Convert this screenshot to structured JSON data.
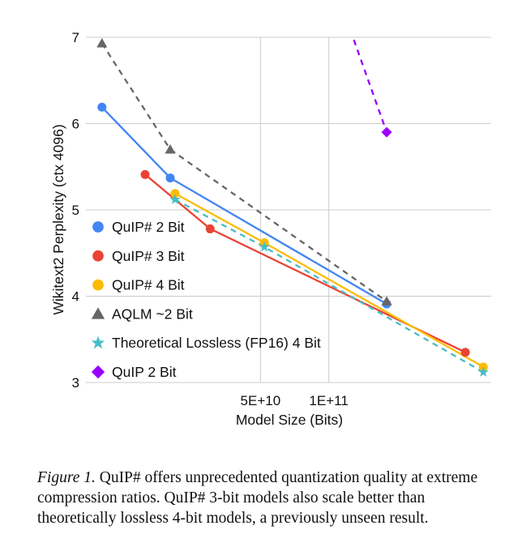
{
  "chart_data": {
    "type": "line",
    "xlabel": "Model Size (Bits)",
    "ylabel": "Wikitext2 Perplexity (ctx 4096)",
    "xscale": "log",
    "xlim": [
      8500000000,
      520000000000
    ],
    "ylim": [
      3,
      7
    ],
    "x_ticks": [
      {
        "value": 50000000000,
        "label": "5E+10"
      },
      {
        "value": 100000000000,
        "label": "1E+11"
      }
    ],
    "y_ticks": [
      {
        "value": 3,
        "label": "3"
      },
      {
        "value": 4,
        "label": "4"
      },
      {
        "value": 5,
        "label": "5"
      },
      {
        "value": 6,
        "label": "6"
      },
      {
        "value": 7,
        "label": "7"
      }
    ],
    "grid": true,
    "legend_position": "bottom-left",
    "series": [
      {
        "name": "QuIP# 2 Bit",
        "color": "#4285f4",
        "marker": "circle",
        "dash": "solid",
        "points": [
          [
            10000000000,
            6.19
          ],
          [
            20000000000,
            5.37
          ],
          [
            180000000000,
            3.91
          ]
        ]
      },
      {
        "name": "QuIP# 3 Bit",
        "color": "#ea4335",
        "marker": "circle",
        "dash": "solid",
        "points": [
          [
            15500000000,
            5.41
          ],
          [
            30000000000,
            4.78
          ],
          [
            400000000000,
            3.35
          ]
        ]
      },
      {
        "name": "QuIP# 4 Bit",
        "color": "#fbbc04",
        "marker": "circle",
        "dash": "solid",
        "points": [
          [
            21000000000,
            5.19
          ],
          [
            52000000000,
            4.62
          ],
          [
            480000000000,
            3.18
          ]
        ]
      },
      {
        "name": "AQLM ~2 Bit",
        "color": "#666666",
        "marker": "triangle",
        "dash": "dashed",
        "points": [
          [
            10000000000,
            6.93
          ],
          [
            20000000000,
            5.7
          ],
          [
            180000000000,
            3.94
          ]
        ]
      },
      {
        "name": "Theoretical Lossless (FP16) 4 Bit",
        "color": "#46bdc6",
        "marker": "star",
        "dash": "dashed",
        "points": [
          [
            21000000000,
            5.12
          ],
          [
            52000000000,
            4.57
          ],
          [
            480000000000,
            3.12
          ]
        ]
      },
      {
        "name": "QuIP 2 Bit",
        "color": "#9900ff",
        "marker": "diamond",
        "dash": "dashed",
        "points": [
          [
            120000000000,
            7.2
          ],
          [
            180000000000,
            5.9
          ]
        ]
      }
    ]
  },
  "caption": {
    "figure_label": "Figure 1.",
    "text": " QuIP# offers unprecedented quantization quality at extreme compression ratios. QuIP# 3-bit models also scale better than theoretically lossless 4-bit models, a previously unseen result."
  }
}
